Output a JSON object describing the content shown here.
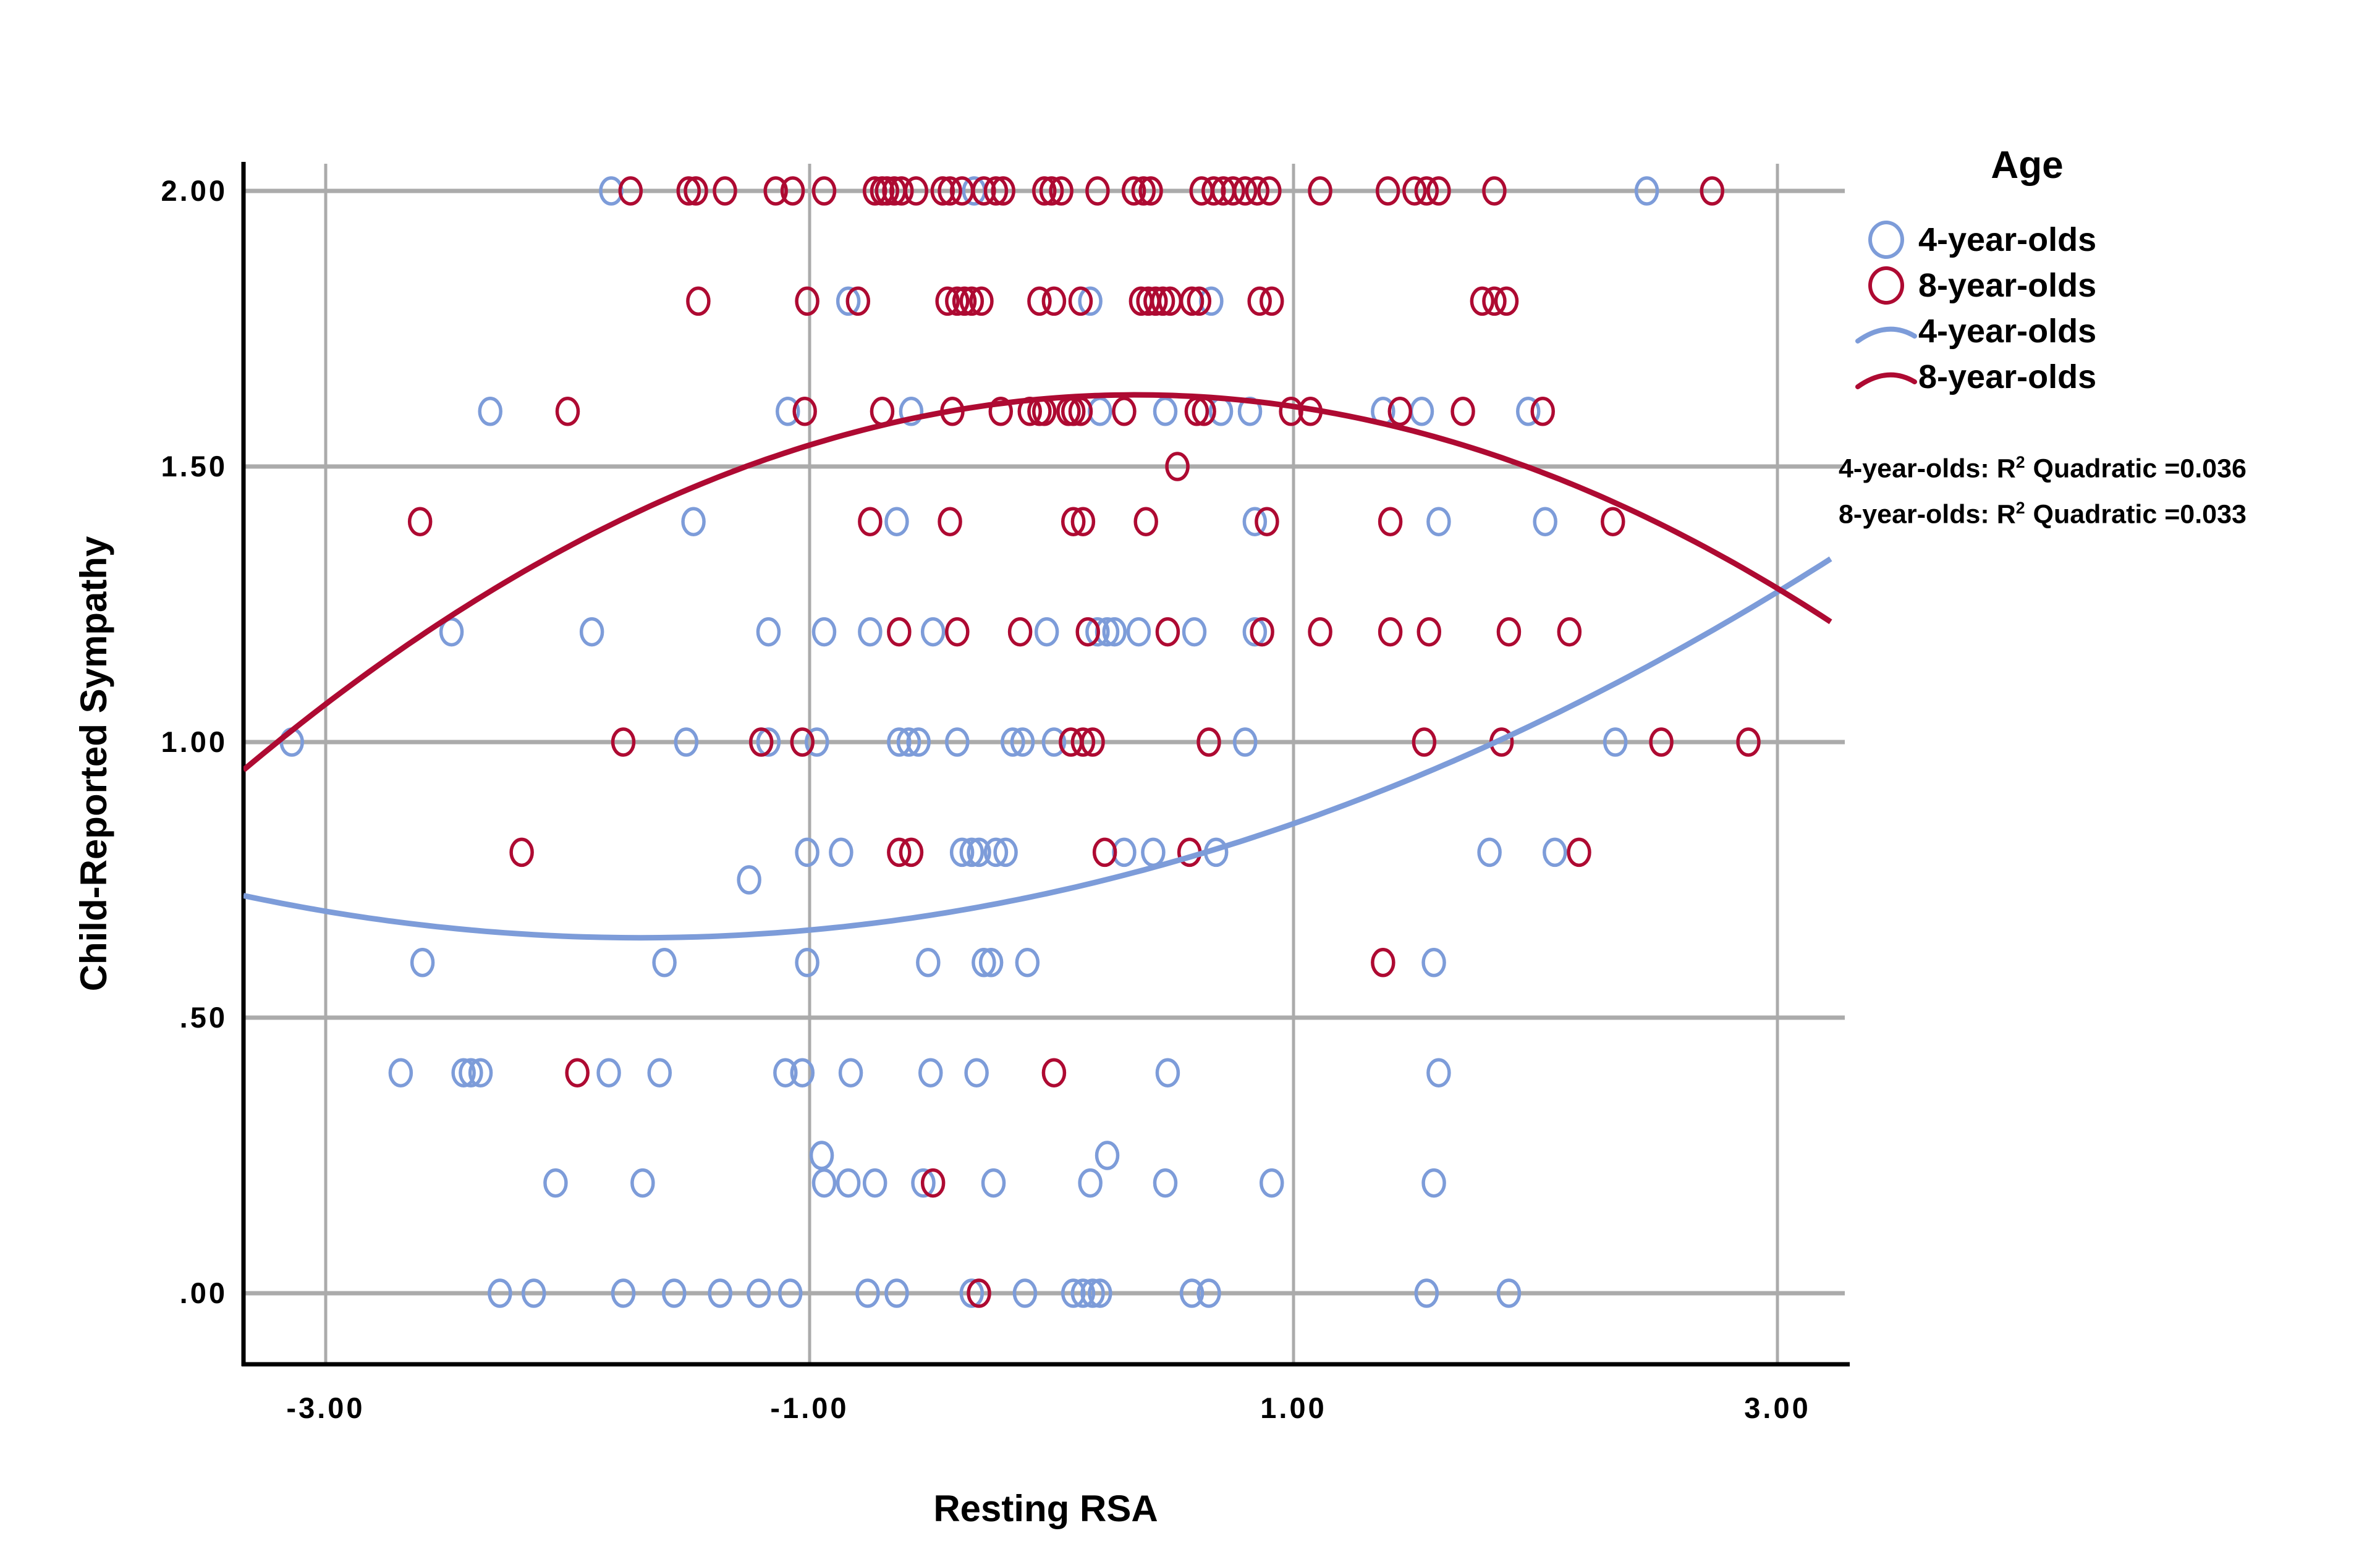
{
  "colors": {
    "blue_series": "#7D9CD9",
    "red_series": "#AE0A32",
    "gridline": "#ABABAB",
    "axis": "#000000",
    "background": "#FFFFFF"
  },
  "chart_data": {
    "type": "scatter",
    "title": "",
    "xlabel": "Resting RSA",
    "ylabel": "Child-Reported Sympathy",
    "xlim": [
      -3.34,
      3.25
    ],
    "ylim": [
      -0.13,
      2.05
    ],
    "grid": true,
    "legend_position": "right",
    "x_ticks": [
      {
        "label": "-3.00",
        "value": -3
      },
      {
        "label": "-1.00",
        "value": -1
      },
      {
        "label": "1.00",
        "value": 1
      },
      {
        "label": "3.00",
        "value": 3
      }
    ],
    "y_ticks": [
      {
        "label": "2.00",
        "value": 2
      },
      {
        "label": "1.50",
        "value": 1.5
      },
      {
        "label": "1.00",
        "value": 1
      },
      {
        "label": ".50",
        "value": 0.5
      },
      {
        "label": ".00",
        "value": 0
      }
    ],
    "series": [
      {
        "name": "4-year-olds",
        "color": "#7D9CD9",
        "points": [
          [
            -1.82,
            2.0
          ],
          [
            -0.32,
            2.0
          ],
          [
            2.46,
            2.0
          ],
          [
            -0.84,
            1.8
          ],
          [
            0.16,
            1.8
          ],
          [
            0.66,
            1.8
          ],
          [
            -2.32,
            1.6
          ],
          [
            -1.09,
            1.6
          ],
          [
            -0.58,
            1.6
          ],
          [
            0.2,
            1.6
          ],
          [
            0.47,
            1.6
          ],
          [
            0.7,
            1.6
          ],
          [
            0.82,
            1.6
          ],
          [
            1.37,
            1.6
          ],
          [
            1.53,
            1.6
          ],
          [
            1.97,
            1.6
          ],
          [
            -1.48,
            1.4
          ],
          [
            -0.64,
            1.4
          ],
          [
            0.84,
            1.4
          ],
          [
            1.6,
            1.4
          ],
          [
            2.04,
            1.4
          ],
          [
            -2.48,
            1.2
          ],
          [
            -1.9,
            1.2
          ],
          [
            -1.17,
            1.2
          ],
          [
            -0.94,
            1.2
          ],
          [
            -0.75,
            1.2
          ],
          [
            -0.49,
            1.2
          ],
          [
            -0.02,
            1.2
          ],
          [
            0.19,
            1.2
          ],
          [
            0.23,
            1.2
          ],
          [
            0.26,
            1.2
          ],
          [
            0.36,
            1.2
          ],
          [
            0.59,
            1.2
          ],
          [
            0.84,
            1.2
          ],
          [
            -3.14,
            1.0
          ],
          [
            -1.51,
            1.0
          ],
          [
            -1.17,
            1.0
          ],
          [
            -0.97,
            1.0
          ],
          [
            -0.63,
            1.0
          ],
          [
            -0.59,
            1.0
          ],
          [
            -0.55,
            1.0
          ],
          [
            -0.39,
            1.0
          ],
          [
            -0.16,
            1.0
          ],
          [
            -0.12,
            1.0
          ],
          [
            0.01,
            1.0
          ],
          [
            0.8,
            1.0
          ],
          [
            2.33,
            1.0
          ],
          [
            -1.01,
            0.8
          ],
          [
            -0.87,
            0.8
          ],
          [
            -0.37,
            0.8
          ],
          [
            -0.33,
            0.8
          ],
          [
            -0.3,
            0.8
          ],
          [
            -0.23,
            0.8
          ],
          [
            -0.19,
            0.8
          ],
          [
            0.3,
            0.8
          ],
          [
            0.42,
            0.8
          ],
          [
            0.68,
            0.8
          ],
          [
            1.81,
            0.8
          ],
          [
            2.08,
            0.8
          ],
          [
            -1.25,
            0.75
          ],
          [
            -2.6,
            0.6
          ],
          [
            -1.6,
            0.6
          ],
          [
            -1.01,
            0.6
          ],
          [
            -0.51,
            0.6
          ],
          [
            -0.28,
            0.6
          ],
          [
            -0.25,
            0.6
          ],
          [
            -0.1,
            0.6
          ],
          [
            1.58,
            0.6
          ],
          [
            -2.69,
            0.4
          ],
          [
            -2.43,
            0.4
          ],
          [
            -2.4,
            0.4
          ],
          [
            -2.36,
            0.4
          ],
          [
            -1.83,
            0.4
          ],
          [
            -1.62,
            0.4
          ],
          [
            -1.1,
            0.4
          ],
          [
            -1.03,
            0.4
          ],
          [
            -0.83,
            0.4
          ],
          [
            -0.5,
            0.4
          ],
          [
            -0.31,
            0.4
          ],
          [
            0.48,
            0.4
          ],
          [
            1.6,
            0.4
          ],
          [
            -0.95,
            0.25
          ],
          [
            0.23,
            0.25
          ],
          [
            -2.05,
            0.2
          ],
          [
            -1.69,
            0.2
          ],
          [
            -0.94,
            0.2
          ],
          [
            -0.84,
            0.2
          ],
          [
            -0.73,
            0.2
          ],
          [
            -0.53,
            0.2
          ],
          [
            -0.24,
            0.2
          ],
          [
            0.16,
            0.2
          ],
          [
            0.47,
            0.2
          ],
          [
            0.91,
            0.2
          ],
          [
            1.58,
            0.2
          ],
          [
            -2.28,
            0.0
          ],
          [
            -2.14,
            0.0
          ],
          [
            -1.77,
            0.0
          ],
          [
            -1.56,
            0.0
          ],
          [
            -1.37,
            0.0
          ],
          [
            -1.21,
            0.0
          ],
          [
            -1.08,
            0.0
          ],
          [
            -0.76,
            0.0
          ],
          [
            -0.64,
            0.0
          ],
          [
            -0.33,
            0.0
          ],
          [
            -0.11,
            0.0
          ],
          [
            0.09,
            0.0
          ],
          [
            0.13,
            0.0
          ],
          [
            0.17,
            0.0
          ],
          [
            0.2,
            0.0
          ],
          [
            0.58,
            0.0
          ],
          [
            0.65,
            0.0
          ],
          [
            1.55,
            0.0
          ],
          [
            1.89,
            0.0
          ]
        ]
      },
      {
        "name": "8-year-olds",
        "color": "#AE0A32",
        "points": [
          [
            -1.74,
            2.0
          ],
          [
            -1.5,
            2.0
          ],
          [
            -1.47,
            2.0
          ],
          [
            -1.35,
            2.0
          ],
          [
            -1.14,
            2.0
          ],
          [
            -1.07,
            2.0
          ],
          [
            -0.94,
            2.0
          ],
          [
            -0.73,
            2.0
          ],
          [
            -0.7,
            2.0
          ],
          [
            -0.68,
            2.0
          ],
          [
            -0.65,
            2.0
          ],
          [
            -0.62,
            2.0
          ],
          [
            -0.56,
            2.0
          ],
          [
            -0.45,
            2.0
          ],
          [
            -0.42,
            2.0
          ],
          [
            -0.37,
            2.0
          ],
          [
            -0.28,
            2.0
          ],
          [
            -0.23,
            2.0
          ],
          [
            -0.2,
            2.0
          ],
          [
            -0.03,
            2.0
          ],
          [
            0.0,
            2.0
          ],
          [
            0.04,
            2.0
          ],
          [
            0.19,
            2.0
          ],
          [
            0.34,
            2.0
          ],
          [
            0.38,
            2.0
          ],
          [
            0.41,
            2.0
          ],
          [
            0.62,
            2.0
          ],
          [
            0.67,
            2.0
          ],
          [
            0.71,
            2.0
          ],
          [
            0.75,
            2.0
          ],
          [
            0.8,
            2.0
          ],
          [
            0.85,
            2.0
          ],
          [
            0.9,
            2.0
          ],
          [
            1.11,
            2.0
          ],
          [
            1.39,
            2.0
          ],
          [
            1.5,
            2.0
          ],
          [
            1.55,
            2.0
          ],
          [
            1.6,
            2.0
          ],
          [
            1.83,
            2.0
          ],
          [
            2.73,
            2.0
          ],
          [
            -1.46,
            1.8
          ],
          [
            -1.01,
            1.8
          ],
          [
            -0.8,
            1.8
          ],
          [
            -0.43,
            1.8
          ],
          [
            -0.39,
            1.8
          ],
          [
            -0.36,
            1.8
          ],
          [
            -0.33,
            1.8
          ],
          [
            -0.29,
            1.8
          ],
          [
            -0.05,
            1.8
          ],
          [
            0.01,
            1.8
          ],
          [
            0.12,
            1.8
          ],
          [
            0.37,
            1.8
          ],
          [
            0.4,
            1.8
          ],
          [
            0.43,
            1.8
          ],
          [
            0.46,
            1.8
          ],
          [
            0.49,
            1.8
          ],
          [
            0.58,
            1.8
          ],
          [
            0.61,
            1.8
          ],
          [
            0.86,
            1.8
          ],
          [
            0.91,
            1.8
          ],
          [
            1.78,
            1.8
          ],
          [
            1.83,
            1.8
          ],
          [
            1.88,
            1.8
          ],
          [
            -2.0,
            1.6
          ],
          [
            -1.02,
            1.6
          ],
          [
            -0.7,
            1.6
          ],
          [
            -0.41,
            1.6
          ],
          [
            -0.21,
            1.6
          ],
          [
            -0.09,
            1.6
          ],
          [
            -0.05,
            1.6
          ],
          [
            -0.03,
            1.6
          ],
          [
            0.07,
            1.6
          ],
          [
            0.09,
            1.6
          ],
          [
            0.12,
            1.6
          ],
          [
            0.3,
            1.6
          ],
          [
            0.6,
            1.6
          ],
          [
            0.63,
            1.6
          ],
          [
            0.99,
            1.6
          ],
          [
            1.07,
            1.6
          ],
          [
            1.44,
            1.6
          ],
          [
            1.7,
            1.6
          ],
          [
            2.03,
            1.6
          ],
          [
            0.52,
            1.5
          ],
          [
            -2.61,
            1.4
          ],
          [
            -0.75,
            1.4
          ],
          [
            -0.42,
            1.4
          ],
          [
            0.09,
            1.4
          ],
          [
            0.13,
            1.4
          ],
          [
            0.39,
            1.4
          ],
          [
            0.89,
            1.4
          ],
          [
            1.4,
            1.4
          ],
          [
            2.32,
            1.4
          ],
          [
            -0.63,
            1.2
          ],
          [
            -0.39,
            1.2
          ],
          [
            -0.13,
            1.2
          ],
          [
            0.15,
            1.2
          ],
          [
            0.48,
            1.2
          ],
          [
            0.87,
            1.2
          ],
          [
            1.11,
            1.2
          ],
          [
            1.4,
            1.2
          ],
          [
            1.56,
            1.2
          ],
          [
            1.89,
            1.2
          ],
          [
            2.14,
            1.2
          ],
          [
            -1.77,
            1.0
          ],
          [
            -1.2,
            1.0
          ],
          [
            -1.03,
            1.0
          ],
          [
            0.08,
            1.0
          ],
          [
            0.13,
            1.0
          ],
          [
            0.17,
            1.0
          ],
          [
            0.65,
            1.0
          ],
          [
            1.54,
            1.0
          ],
          [
            1.86,
            1.0
          ],
          [
            2.52,
            1.0
          ],
          [
            2.88,
            1.0
          ],
          [
            -2.19,
            0.8
          ],
          [
            -0.63,
            0.8
          ],
          [
            -0.58,
            0.8
          ],
          [
            0.22,
            0.8
          ],
          [
            0.57,
            0.8
          ],
          [
            2.18,
            0.8
          ],
          [
            1.37,
            0.6
          ],
          [
            -1.96,
            0.4
          ],
          [
            0.01,
            0.4
          ],
          [
            -0.49,
            0.2
          ],
          [
            -0.3,
            0.0
          ]
        ]
      }
    ],
    "fit_curves": [
      {
        "name": "4-year-olds",
        "color": "#7D9CD9",
        "model": "quadratic",
        "vertex_x": -1.7,
        "vertex_y": 0.645,
        "a": 0.0284,
        "r2": 0.036
      },
      {
        "name": "8-year-olds",
        "color": "#AE0A32",
        "model": "quadratic",
        "vertex_x": 0.35,
        "vertex_y": 1.63,
        "a": -0.05,
        "r2": 0.033
      }
    ]
  },
  "axes": {
    "x_title": "Resting RSA",
    "y_title": "Child-Reported Sympathy"
  },
  "legend": {
    "title": "Age",
    "items": [
      {
        "label": "4-year-olds",
        "marker": "circle",
        "color": "#7D9CD9"
      },
      {
        "label": "8-year-olds",
        "marker": "circle",
        "color": "#AE0A32"
      },
      {
        "label": "4-year-olds",
        "marker": "curve",
        "color": "#7D9CD9"
      },
      {
        "label": "8-year-olds",
        "marker": "curve",
        "color": "#AE0A32"
      }
    ],
    "stats": [
      {
        "prefix": "4-year-olds: R",
        "sup": "2",
        "suffix": " Quadratic =0.036"
      },
      {
        "prefix": "8-year-olds: R",
        "sup": "2",
        "suffix": " Quadratic =0.033"
      }
    ]
  }
}
